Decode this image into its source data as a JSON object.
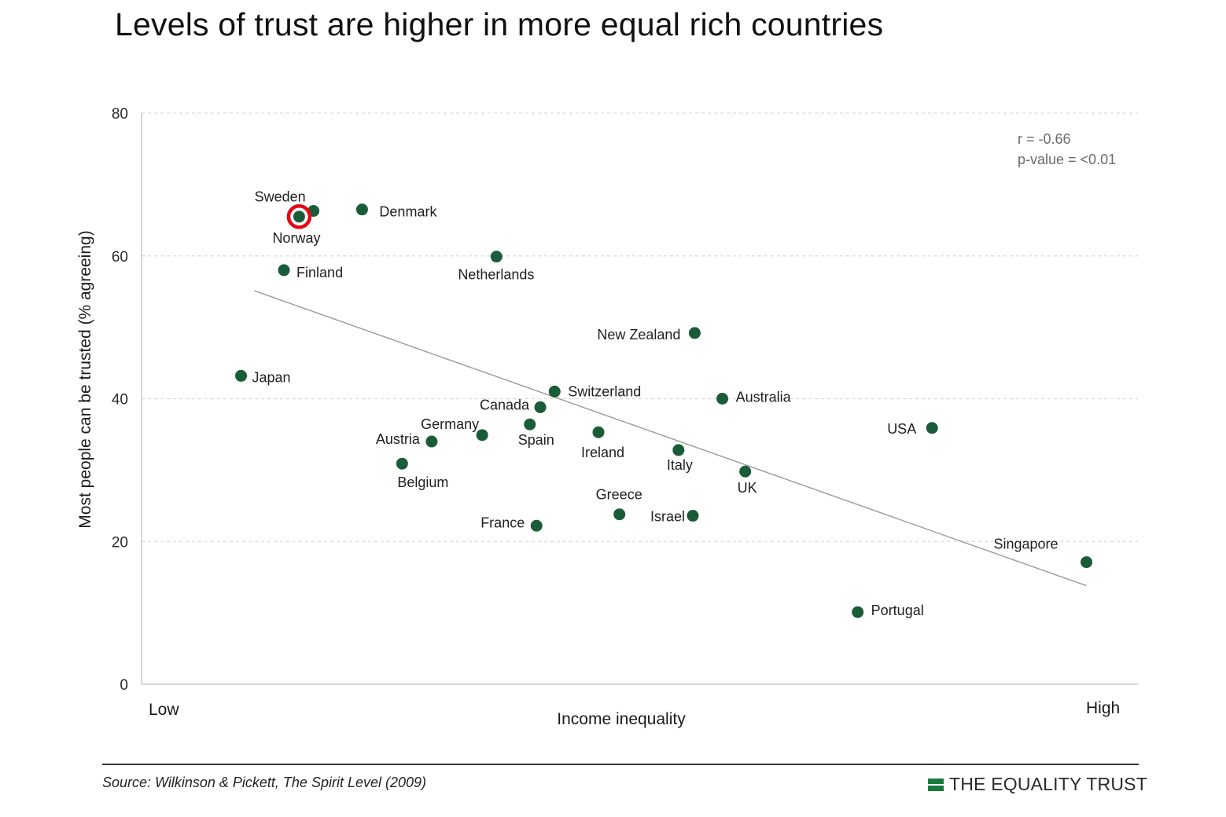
{
  "title": "Levels of trust are higher in more equal rich countries",
  "colors": {
    "point": "#1a5c37",
    "highlight_ring": "#e30613",
    "trendline": "#9a9a9a",
    "grid": "#d9d9d9",
    "brand": "#1a7a3e"
  },
  "chart_data": {
    "type": "scatter",
    "title": "Levels of trust are higher in more equal rich countries",
    "xlabel": "Income inequality",
    "ylabel": "Most people can be trusted (% agreeing)",
    "x_tick_labels": {
      "low": "Low",
      "high": "High"
    },
    "xlim": [
      0,
      100
    ],
    "ylim": [
      0,
      80
    ],
    "y_ticks": [
      0,
      20,
      40,
      60,
      80
    ],
    "grid": "horizontal dashed",
    "annotations": {
      "r": "r = -0.66",
      "p": "p-value = <0.01"
    },
    "points": [
      {
        "label": "Sweden",
        "x": 13.5,
        "y": 66.3
      },
      {
        "label": "Norway",
        "x": 12.0,
        "y": 65.5,
        "highlighted": true
      },
      {
        "label": "Denmark",
        "x": 18.6,
        "y": 66.5
      },
      {
        "label": "Finland",
        "x": 10.4,
        "y": 58.0
      },
      {
        "label": "Netherlands",
        "x": 32.7,
        "y": 59.9
      },
      {
        "label": "Japan",
        "x": 5.9,
        "y": 43.2
      },
      {
        "label": "New Zealand",
        "x": 53.5,
        "y": 49.2
      },
      {
        "label": "Switzerland",
        "x": 38.8,
        "y": 41.0
      },
      {
        "label": "Canada",
        "x": 37.3,
        "y": 38.8
      },
      {
        "label": "Australia",
        "x": 56.4,
        "y": 40.0
      },
      {
        "label": "Germany",
        "x": 31.2,
        "y": 34.9
      },
      {
        "label": "Spain",
        "x": 36.2,
        "y": 36.4
      },
      {
        "label": "Austria",
        "x": 25.9,
        "y": 34.0
      },
      {
        "label": "Ireland",
        "x": 43.4,
        "y": 35.3
      },
      {
        "label": "USA",
        "x": 78.4,
        "y": 35.9
      },
      {
        "label": "Italy",
        "x": 51.8,
        "y": 32.8
      },
      {
        "label": "Belgium",
        "x": 22.8,
        "y": 30.9
      },
      {
        "label": "UK",
        "x": 58.8,
        "y": 29.8
      },
      {
        "label": "Greece",
        "x": 45.6,
        "y": 23.8
      },
      {
        "label": "Israel",
        "x": 53.3,
        "y": 23.6
      },
      {
        "label": "France",
        "x": 36.9,
        "y": 22.2
      },
      {
        "label": "Singapore",
        "x": 94.6,
        "y": 17.1
      },
      {
        "label": "Portugal",
        "x": 70.6,
        "y": 10.1
      }
    ],
    "trendline": {
      "x": [
        5.9,
        94.6
      ],
      "y": [
        54.9,
        13.8
      ]
    }
  },
  "footer": {
    "source": "Source: Wilkinson & Pickett, The Spirit Level (2009)",
    "brand": "THE EQUALITY TRUST"
  }
}
